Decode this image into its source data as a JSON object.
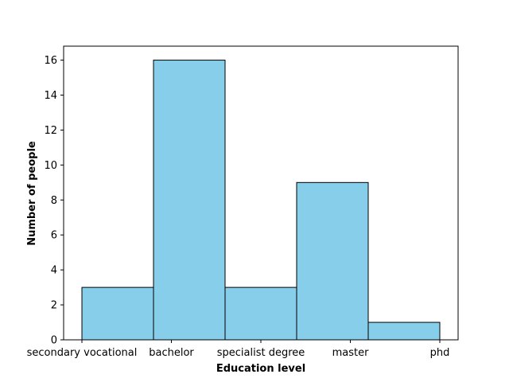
{
  "chart_data": {
    "type": "bar",
    "categories": [
      "secondary vocational",
      "bachelor",
      "specialist degree",
      "master",
      "phd"
    ],
    "values": [
      3,
      16,
      3,
      9,
      1
    ],
    "xlabel": "Education level",
    "ylabel": "Number of people",
    "ylim": [
      0,
      16.8
    ],
    "yticks": [
      0,
      2,
      4,
      6,
      8,
      10,
      12,
      14,
      16
    ],
    "bar_color": "#87CEEB",
    "edge_color": "#000000",
    "grid": false,
    "legend": "none"
  }
}
